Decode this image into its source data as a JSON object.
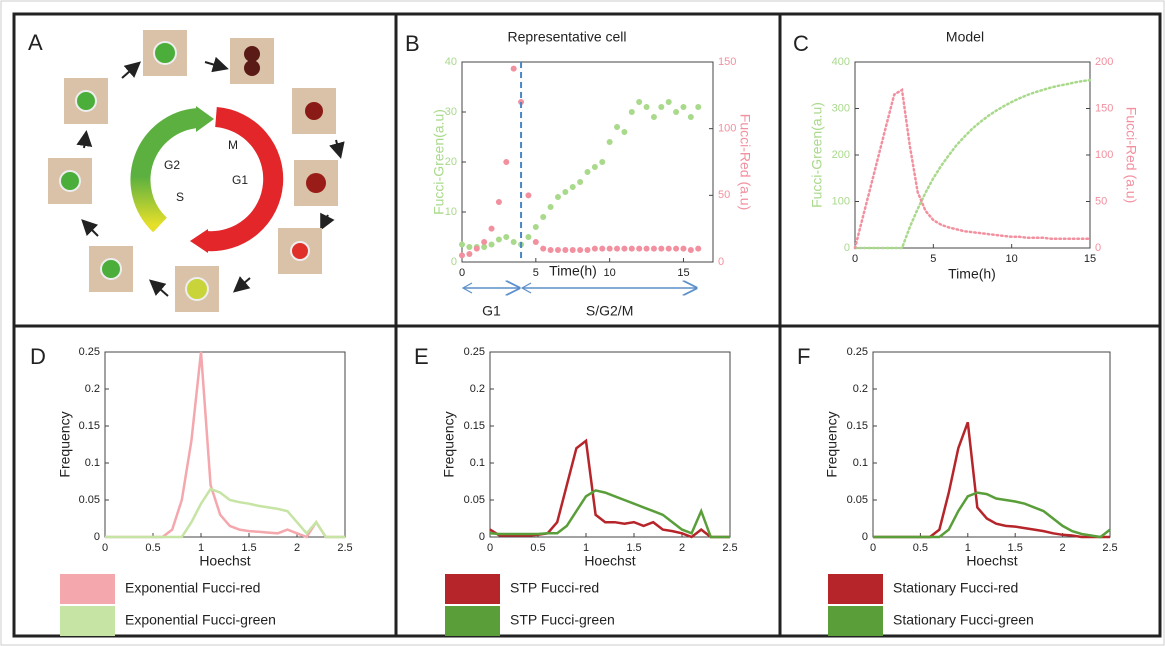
{
  "panel_a": {
    "label": "A",
    "phases": [
      "M",
      "G2",
      "S",
      "G1"
    ]
  },
  "chart_data": [
    {
      "type": "scatter",
      "label": "B",
      "title": "Representative cell",
      "xlabel": "Time(h)",
      "ylabel": "Fucci-Green(a.u)",
      "y2label": "Fucci-Red (a.u)",
      "xlim": [
        0,
        17
      ],
      "xticks": [
        0,
        5,
        10,
        15
      ],
      "ylim": [
        0,
        40
      ],
      "yticks": [
        0,
        10,
        20,
        30,
        40
      ],
      "y2lim": [
        0,
        150
      ],
      "y2ticks": [
        0,
        50,
        100,
        150
      ],
      "x": [
        0,
        0.5,
        1,
        1.5,
        2,
        2.5,
        3,
        3.5,
        4,
        4.5,
        5,
        5.5,
        6,
        6.5,
        7,
        7.5,
        8,
        8.5,
        9,
        9.5,
        10,
        10.5,
        11,
        11.5,
        12,
        12.5,
        13,
        13.5,
        14,
        14.5,
        15,
        15.5,
        16
      ],
      "series": [
        {
          "color": "#a9d98b",
          "values": [
            3.5,
            3,
            3,
            3,
            3.5,
            4.5,
            5,
            4,
            3.5,
            5,
            7,
            9,
            11,
            13,
            14,
            15,
            16,
            18,
            19,
            20,
            24,
            27,
            26,
            30,
            32,
            31,
            29,
            31,
            32,
            30,
            31,
            29,
            31
          ]
        },
        {
          "color": "#f2909f",
          "axis": "y2",
          "values": [
            5,
            6,
            10,
            15,
            25,
            45,
            75,
            145,
            120,
            50,
            15,
            10,
            9,
            9,
            9,
            9,
            9,
            9,
            10,
            10,
            10,
            10,
            10,
            10,
            10,
            10,
            10,
            10,
            10,
            10,
            10,
            9,
            10
          ]
        }
      ],
      "divider": 4,
      "phases": [
        {
          "label": "G1",
          "start": 0,
          "end": 4
        },
        {
          "label": "S/G2/M",
          "start": 4,
          "end": 16
        }
      ]
    },
    {
      "type": "line",
      "label": "C",
      "title": "Model",
      "xlabel": "Time(h)",
      "ylabel": "Fucci-Green(a.u)",
      "y2label": "Fucci-Red (a.u)",
      "line_style": "dotted",
      "xlim": [
        0,
        15
      ],
      "xticks": [
        0,
        5,
        10,
        15
      ],
      "ylim": [
        0,
        400
      ],
      "yticks": [
        0,
        100,
        200,
        300,
        400
      ],
      "y2lim": [
        0,
        200
      ],
      "y2ticks": [
        0,
        50,
        100,
        150,
        200
      ],
      "x": [
        0,
        0.5,
        1,
        1.5,
        2,
        2.5,
        3,
        3.5,
        4,
        4.5,
        5,
        5.5,
        6,
        6.5,
        7,
        7.5,
        8,
        8.5,
        9,
        9.5,
        10,
        10.5,
        11,
        11.5,
        12,
        12.5,
        13,
        13.5,
        14,
        14.5,
        15
      ],
      "series": [
        {
          "color": "#a9d98b",
          "values": [
            0,
            0,
            0,
            0,
            0,
            0,
            0,
            45,
            84,
            119,
            150,
            177,
            200,
            222,
            240,
            257,
            271,
            284,
            295,
            305,
            314,
            322,
            329,
            335,
            340,
            345,
            349,
            352,
            356,
            359,
            361
          ]
        },
        {
          "color": "#f2909f",
          "axis": "y2",
          "values": [
            0,
            33,
            66,
            99,
            132,
            165,
            170,
            110,
            60,
            40,
            30,
            25,
            22,
            20,
            18,
            17,
            16,
            15,
            14,
            13,
            12,
            12,
            11,
            11,
            11,
            10,
            10,
            10,
            10,
            10,
            10
          ]
        }
      ]
    },
    {
      "type": "line",
      "label": "D",
      "xlabel": "Hoechst",
      "ylabel": "Frequency",
      "xlim": [
        0,
        2.5
      ],
      "xticks": [
        0,
        0.5,
        1,
        1.5,
        2,
        2.5
      ],
      "ylim": [
        0,
        0.25
      ],
      "yticks": [
        0,
        0.05,
        0.1,
        0.15,
        0.2,
        0.25
      ],
      "x": [
        0,
        0.1,
        0.2,
        0.3,
        0.4,
        0.5,
        0.6,
        0.7,
        0.8,
        0.9,
        1,
        1.1,
        1.2,
        1.3,
        1.4,
        1.5,
        1.6,
        1.7,
        1.8,
        1.9,
        2,
        2.1,
        2.2,
        2.3,
        2.4,
        2.5
      ],
      "series": [
        {
          "name": "Exponential Fucci-red",
          "color": "#f4a7ac",
          "values": [
            0,
            0,
            0,
            0,
            0,
            0,
            0,
            0.01,
            0.05,
            0.13,
            0.25,
            0.07,
            0.03,
            0.015,
            0.01,
            0.008,
            0.007,
            0.006,
            0.005,
            0.01,
            0.005,
            0,
            0.02,
            0,
            0,
            0
          ]
        },
        {
          "name": "Exponential Fucci-green",
          "color": "#c6e4a3",
          "values": [
            0,
            0,
            0,
            0,
            0,
            0,
            0,
            0,
            0,
            0.02,
            0.045,
            0.065,
            0.06,
            0.05,
            0.047,
            0.045,
            0.042,
            0.04,
            0.038,
            0.035,
            0.02,
            0.005,
            0.02,
            0,
            0,
            0
          ]
        }
      ]
    },
    {
      "type": "line",
      "label": "E",
      "xlabel": "Hoechst",
      "ylabel": "Frequency",
      "xlim": [
        0,
        2.5
      ],
      "xticks": [
        0,
        0.5,
        1,
        1.5,
        2,
        2.5
      ],
      "ylim": [
        0,
        0.25
      ],
      "yticks": [
        0,
        0.05,
        0.1,
        0.15,
        0.2,
        0.25
      ],
      "x": [
        0,
        0.1,
        0.2,
        0.3,
        0.4,
        0.5,
        0.6,
        0.7,
        0.8,
        0.9,
        1,
        1.1,
        1.2,
        1.3,
        1.4,
        1.5,
        1.6,
        1.7,
        1.8,
        1.9,
        2,
        2.1,
        2.2,
        2.3,
        2.4,
        2.5
      ],
      "series": [
        {
          "name": "STP Fucci-red",
          "color": "#b5252a",
          "values": [
            0.01,
            0.002,
            0.002,
            0.002,
            0.002,
            0.003,
            0.005,
            0.02,
            0.07,
            0.12,
            0.13,
            0.03,
            0.02,
            0.02,
            0.018,
            0.02,
            0.015,
            0.02,
            0.01,
            0.008,
            0.005,
            0,
            0.01,
            0,
            0,
            0
          ]
        },
        {
          "name": "STP Fucci-green",
          "color": "#5a9e3a",
          "values": [
            0.005,
            0.004,
            0.004,
            0.004,
            0.004,
            0.004,
            0.005,
            0.005,
            0.015,
            0.035,
            0.055,
            0.063,
            0.06,
            0.055,
            0.05,
            0.045,
            0.04,
            0.035,
            0.03,
            0.02,
            0.01,
            0.005,
            0.035,
            0,
            0,
            0
          ]
        }
      ]
    },
    {
      "type": "line",
      "label": "F",
      "xlabel": "Hoechst",
      "ylabel": "Frequency",
      "xlim": [
        0,
        2.5
      ],
      "xticks": [
        0,
        0.5,
        1,
        1.5,
        2,
        2.5
      ],
      "ylim": [
        0,
        0.25
      ],
      "yticks": [
        0,
        0.05,
        0.1,
        0.15,
        0.2,
        0.25
      ],
      "x": [
        0,
        0.1,
        0.2,
        0.3,
        0.4,
        0.5,
        0.6,
        0.7,
        0.8,
        0.9,
        1,
        1.1,
        1.2,
        1.3,
        1.4,
        1.5,
        1.6,
        1.7,
        1.8,
        1.9,
        2,
        2.1,
        2.2,
        2.3,
        2.4,
        2.5
      ],
      "series": [
        {
          "name": "Stationary Fucci-red",
          "color": "#b5252a",
          "values": [
            0,
            0,
            0,
            0,
            0,
            0,
            0,
            0.01,
            0.06,
            0.12,
            0.155,
            0.04,
            0.025,
            0.018,
            0.015,
            0.014,
            0.012,
            0.01,
            0.008,
            0.005,
            0.003,
            0.002,
            0,
            0,
            0,
            0
          ]
        },
        {
          "name": "Stationary Fucci-green",
          "color": "#5a9e3a",
          "values": [
            0,
            0,
            0,
            0,
            0,
            0,
            0,
            0,
            0.01,
            0.035,
            0.055,
            0.06,
            0.058,
            0.052,
            0.05,
            0.048,
            0.045,
            0.04,
            0.035,
            0.025,
            0.015,
            0.008,
            0.004,
            0.002,
            0,
            0.01
          ]
        }
      ]
    }
  ]
}
